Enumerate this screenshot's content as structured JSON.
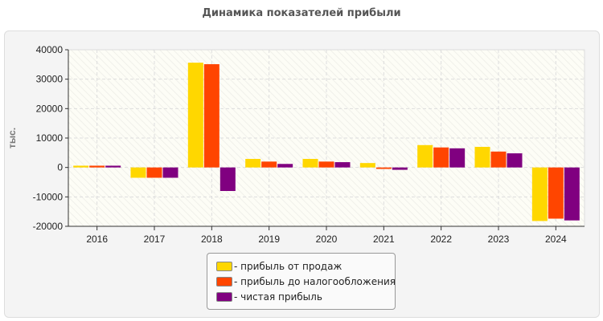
{
  "chart_data": {
    "type": "bar",
    "title": "Динамика показателей прибыли",
    "ylabel": "тыс.",
    "xlabel": "",
    "ylim": [
      -20000,
      40000
    ],
    "yticks": [
      "40000",
      "30000",
      "20000",
      "10000",
      "0",
      "-10000",
      "-20000"
    ],
    "grid": true,
    "legend_position": "bottom",
    "categories": [
      "2016",
      "2017",
      "2018",
      "2019",
      "2020",
      "2021",
      "2022",
      "2023",
      "2024"
    ],
    "series": [
      {
        "name": "- прибыль от продаж",
        "color": "#FFD700",
        "values": [
          600,
          -3500,
          35600,
          2900,
          2900,
          1500,
          7600,
          7000,
          -18200
        ]
      },
      {
        "name": "- прибыль до налогообложения",
        "color": "#FF4500",
        "values": [
          600,
          -3500,
          35100,
          2000,
          2000,
          -500,
          6800,
          5400,
          -17400
        ]
      },
      {
        "name": "- чистая прибыль",
        "color": "#800080",
        "values": [
          600,
          -3500,
          -8000,
          1200,
          1800,
          -800,
          6500,
          4800,
          -18000
        ]
      }
    ]
  }
}
